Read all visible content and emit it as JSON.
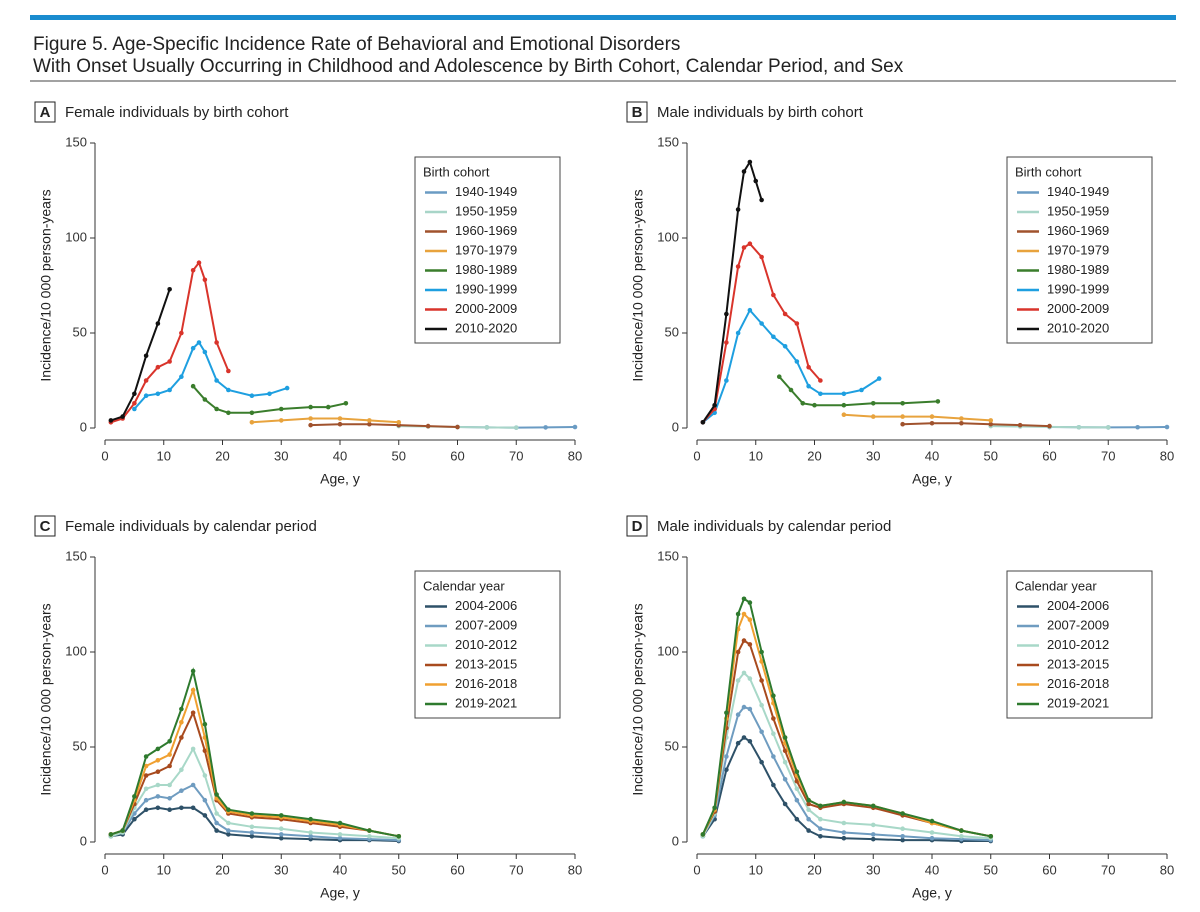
{
  "figure_title": [
    "Figure 5. Age-Specific Incidence Rate of Behavioral and Emotional Disorders",
    "With Onset Usually Occurring in Childhood and Adolescence by Birth Cohort, Calendar Period, and Sex"
  ],
  "chart_data": [
    {
      "type": "line",
      "panel_label": "A",
      "title": "Female individuals by birth cohort",
      "xlabel": "Age, y",
      "ylabel": "Incidence/10 000 person-years",
      "xlim": [
        0,
        80
      ],
      "xticks": [
        0,
        10,
        20,
        30,
        40,
        50,
        60,
        70,
        80
      ],
      "ylim": [
        0,
        150
      ],
      "yticks": [
        0,
        50,
        100,
        150
      ],
      "legend_title": "Birth cohort",
      "series": [
        {
          "name": "1940-1949",
          "color": "#6a9bc3",
          "x": [
            60,
            65,
            70,
            75,
            80
          ],
          "values": [
            0.5,
            0.3,
            0.2,
            0.3,
            0.5
          ]
        },
        {
          "name": "1950-1959",
          "color": "#a8d5c8",
          "x": [
            50,
            55,
            60,
            65,
            70
          ],
          "values": [
            1,
            0.8,
            0.5,
            0.3,
            0.2
          ]
        },
        {
          "name": "1960-1969",
          "color": "#a0522d",
          "x": [
            35,
            40,
            45,
            50,
            55,
            60
          ],
          "values": [
            1.5,
            2,
            2,
            1.5,
            1,
            0.5
          ]
        },
        {
          "name": "1970-1979",
          "color": "#e8a33d",
          "x": [
            25,
            30,
            35,
            40,
            45,
            50
          ],
          "values": [
            3,
            4,
            5,
            5,
            4,
            3
          ]
        },
        {
          "name": "1980-1989",
          "color": "#3a7d2c",
          "x": [
            15,
            17,
            19,
            21,
            25,
            30,
            35,
            38,
            41
          ],
          "values": [
            22,
            15,
            10,
            8,
            8,
            10,
            11,
            11,
            13
          ]
        },
        {
          "name": "1990-1999",
          "color": "#1e9fe0",
          "x": [
            5,
            7,
            9,
            11,
            13,
            15,
            16,
            17,
            19,
            21,
            25,
            28,
            31
          ],
          "values": [
            10,
            17,
            18,
            20,
            27,
            42,
            45,
            40,
            25,
            20,
            17,
            18,
            21
          ]
        },
        {
          "name": "2000-2009",
          "color": "#d9342b",
          "x": [
            1,
            3,
            5,
            7,
            9,
            11,
            13,
            15,
            16,
            17,
            19,
            21
          ],
          "values": [
            3,
            5,
            13,
            25,
            32,
            35,
            50,
            83,
            87,
            78,
            45,
            30
          ]
        },
        {
          "name": "2010-2020",
          "color": "#111111",
          "x": [
            1,
            3,
            5,
            7,
            9,
            11
          ],
          "values": [
            4,
            6,
            18,
            38,
            55,
            73
          ]
        }
      ]
    },
    {
      "type": "line",
      "panel_label": "B",
      "title": "Male individuals by birth cohort",
      "xlabel": "Age, y",
      "ylabel": "Incidence/10 000 person-years",
      "xlim": [
        0,
        80
      ],
      "xticks": [
        0,
        10,
        20,
        30,
        40,
        50,
        60,
        70,
        80
      ],
      "ylim": [
        0,
        150
      ],
      "yticks": [
        0,
        50,
        100,
        150
      ],
      "legend_title": "Birth cohort",
      "series": [
        {
          "name": "1940-1949",
          "color": "#6a9bc3",
          "x": [
            60,
            65,
            70,
            75,
            80
          ],
          "values": [
            0.5,
            0.4,
            0.3,
            0.4,
            0.5
          ]
        },
        {
          "name": "1950-1959",
          "color": "#a8d5c8",
          "x": [
            50,
            55,
            60,
            65,
            70
          ],
          "values": [
            1,
            0.8,
            0.6,
            0.4,
            0.3
          ]
        },
        {
          "name": "1960-1969",
          "color": "#a0522d",
          "x": [
            35,
            40,
            45,
            50,
            55,
            60
          ],
          "values": [
            2,
            2.5,
            2.5,
            2,
            1.5,
            1
          ]
        },
        {
          "name": "1970-1979",
          "color": "#e8a33d",
          "x": [
            25,
            30,
            35,
            40,
            45,
            50
          ],
          "values": [
            7,
            6,
            6,
            6,
            5,
            4
          ]
        },
        {
          "name": "1980-1989",
          "color": "#3a7d2c",
          "x": [
            14,
            16,
            18,
            20,
            25,
            30,
            35,
            41
          ],
          "values": [
            27,
            20,
            13,
            12,
            12,
            13,
            13,
            14
          ]
        },
        {
          "name": "1990-1999",
          "color": "#1e9fe0",
          "x": [
            1,
            3,
            5,
            7,
            9,
            11,
            13,
            15,
            17,
            19,
            21,
            25,
            28,
            31
          ],
          "values": [
            3,
            8,
            25,
            50,
            62,
            55,
            48,
            43,
            35,
            22,
            18,
            18,
            20,
            26
          ]
        },
        {
          "name": "2000-2009",
          "color": "#d9342b",
          "x": [
            1,
            3,
            5,
            7,
            8,
            9,
            11,
            13,
            15,
            17,
            19,
            21
          ],
          "values": [
            3,
            10,
            45,
            85,
            95,
            97,
            90,
            70,
            60,
            55,
            32,
            25
          ]
        },
        {
          "name": "2010-2020",
          "color": "#111111",
          "x": [
            1,
            3,
            5,
            7,
            8,
            9,
            10,
            11
          ],
          "values": [
            3,
            12,
            60,
            115,
            135,
            140,
            130,
            120
          ]
        }
      ]
    },
    {
      "type": "line",
      "panel_label": "C",
      "title": "Female individuals by calendar period",
      "xlabel": "Age, y",
      "ylabel": "Incidence/10 000 person-years",
      "xlim": [
        0,
        80
      ],
      "xticks": [
        0,
        10,
        20,
        30,
        40,
        50,
        60,
        70,
        80
      ],
      "ylim": [
        0,
        150
      ],
      "yticks": [
        0,
        50,
        100,
        150
      ],
      "legend_title": "Calendar year",
      "series": [
        {
          "name": "2004-2006",
          "color": "#2e5168",
          "x": [
            1,
            3,
            5,
            7,
            9,
            11,
            13,
            15,
            17,
            19,
            21,
            25,
            30,
            35,
            40,
            45,
            50
          ],
          "values": [
            3,
            4,
            12,
            17,
            18,
            17,
            18,
            18,
            14,
            6,
            4,
            3,
            2,
            1.5,
            1,
            1,
            0.5
          ]
        },
        {
          "name": "2007-2009",
          "color": "#6f9cc0",
          "x": [
            1,
            3,
            5,
            7,
            9,
            11,
            13,
            15,
            17,
            19,
            21,
            25,
            30,
            35,
            40,
            45,
            50
          ],
          "values": [
            3,
            5,
            15,
            22,
            24,
            23,
            27,
            30,
            22,
            10,
            6,
            5,
            4,
            3,
            2,
            1.5,
            1
          ]
        },
        {
          "name": "2010-2012",
          "color": "#a8d8c8",
          "x": [
            1,
            3,
            5,
            7,
            9,
            11,
            13,
            15,
            17,
            19,
            21,
            25,
            30,
            35,
            40,
            45,
            50
          ],
          "values": [
            3,
            5,
            18,
            28,
            30,
            30,
            38,
            49,
            35,
            15,
            10,
            8,
            7,
            5,
            4,
            3,
            2
          ]
        },
        {
          "name": "2013-2015",
          "color": "#a84a1e",
          "x": [
            1,
            3,
            5,
            7,
            9,
            11,
            13,
            15,
            17,
            19,
            21,
            25,
            30,
            35,
            40,
            45,
            50
          ],
          "values": [
            4,
            6,
            20,
            35,
            37,
            40,
            55,
            68,
            48,
            22,
            15,
            13,
            12,
            10,
            8,
            6,
            3
          ]
        },
        {
          "name": "2016-2018",
          "color": "#f0a030",
          "x": [
            1,
            3,
            5,
            7,
            9,
            11,
            13,
            15,
            17,
            19,
            21,
            25,
            30,
            35,
            40,
            45,
            50
          ],
          "values": [
            4,
            6,
            22,
            40,
            43,
            46,
            63,
            80,
            55,
            23,
            16,
            14,
            13,
            11,
            9,
            6,
            3
          ]
        },
        {
          "name": "2019-2021",
          "color": "#2e7a2e",
          "x": [
            1,
            3,
            5,
            7,
            9,
            11,
            13,
            15,
            17,
            19,
            21,
            25,
            30,
            35,
            40,
            45,
            50
          ],
          "values": [
            4,
            6,
            24,
            45,
            49,
            53,
            70,
            90,
            62,
            25,
            17,
            15,
            14,
            12,
            10,
            6,
            3
          ]
        }
      ]
    },
    {
      "type": "line",
      "panel_label": "D",
      "title": "Male individuals by calendar period",
      "xlabel": "Age, y",
      "ylabel": "Incidence/10 000 person-years",
      "xlim": [
        0,
        80
      ],
      "xticks": [
        0,
        10,
        20,
        30,
        40,
        50,
        60,
        70,
        80
      ],
      "ylim": [
        0,
        150
      ],
      "yticks": [
        0,
        50,
        100,
        150
      ],
      "legend_title": "Calendar year",
      "series": [
        {
          "name": "2004-2006",
          "color": "#2e5168",
          "x": [
            1,
            3,
            5,
            7,
            8,
            9,
            11,
            13,
            15,
            17,
            19,
            21,
            25,
            30,
            35,
            40,
            45,
            50
          ],
          "values": [
            3,
            12,
            38,
            52,
            55,
            53,
            42,
            30,
            20,
            12,
            6,
            3,
            2,
            1.5,
            1,
            1,
            0.5,
            0.5
          ]
        },
        {
          "name": "2007-2009",
          "color": "#6f9cc0",
          "x": [
            1,
            3,
            5,
            7,
            8,
            9,
            11,
            13,
            15,
            17,
            19,
            21,
            25,
            30,
            35,
            40,
            45,
            50
          ],
          "values": [
            3,
            14,
            45,
            67,
            71,
            70,
            58,
            45,
            33,
            22,
            12,
            7,
            5,
            4,
            3,
            2,
            1.5,
            1
          ]
        },
        {
          "name": "2010-2012",
          "color": "#a8d8c8",
          "x": [
            1,
            3,
            5,
            7,
            8,
            9,
            11,
            13,
            15,
            17,
            19,
            21,
            25,
            30,
            35,
            40,
            45,
            50
          ],
          "values": [
            3,
            15,
            55,
            85,
            89,
            86,
            72,
            57,
            42,
            28,
            17,
            12,
            10,
            9,
            7,
            5,
            3,
            2
          ]
        },
        {
          "name": "2013-2015",
          "color": "#a84a1e",
          "x": [
            1,
            3,
            5,
            7,
            8,
            9,
            11,
            13,
            15,
            17,
            19,
            21,
            25,
            30,
            35,
            40,
            45,
            50
          ],
          "values": [
            4,
            16,
            60,
            100,
            106,
            104,
            85,
            65,
            48,
            32,
            20,
            18,
            20,
            18,
            14,
            10,
            6,
            3
          ]
        },
        {
          "name": "2016-2018",
          "color": "#f0a030",
          "x": [
            1,
            3,
            5,
            7,
            8,
            9,
            11,
            13,
            15,
            17,
            19,
            21,
            25,
            30,
            35,
            40,
            45,
            50
          ],
          "values": [
            4,
            17,
            65,
            112,
            120,
            117,
            95,
            73,
            52,
            35,
            22,
            19,
            21,
            19,
            15,
            10,
            6,
            3
          ]
        },
        {
          "name": "2019-2021",
          "color": "#2e7a2e",
          "x": [
            1,
            3,
            5,
            7,
            8,
            9,
            11,
            13,
            15,
            17,
            19,
            21,
            25,
            30,
            35,
            40,
            45,
            50
          ],
          "values": [
            4,
            18,
            68,
            120,
            128,
            126,
            100,
            77,
            55,
            37,
            22,
            19,
            21,
            19,
            15,
            11,
            6,
            3
          ]
        }
      ]
    }
  ]
}
